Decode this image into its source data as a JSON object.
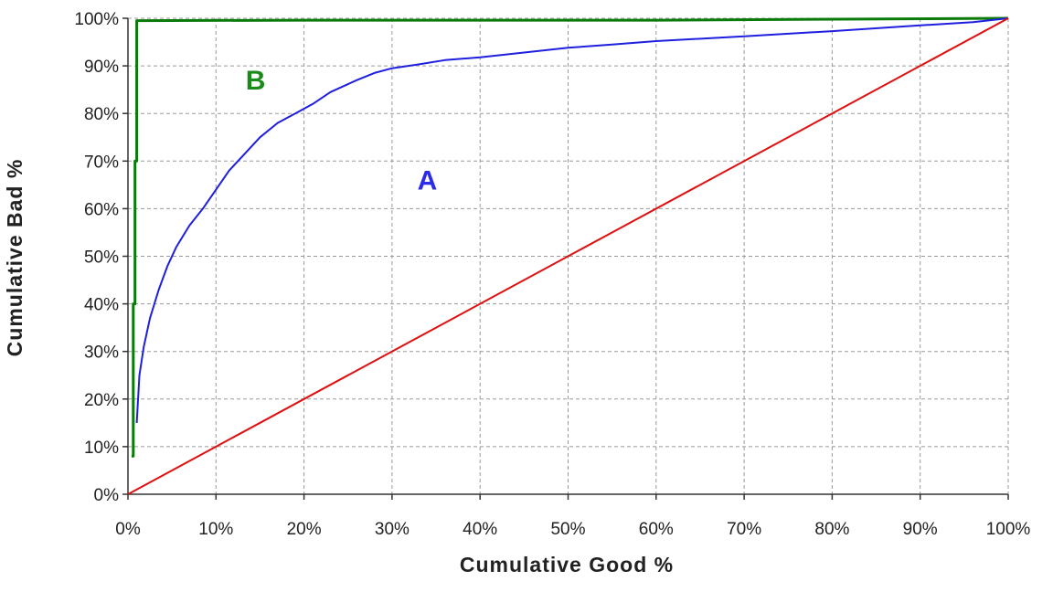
{
  "chart_data": {
    "type": "line",
    "title": "",
    "xlabel": "Cumulative Good %",
    "ylabel": "Cumulative Bad %",
    "xlim": [
      0,
      100
    ],
    "ylim": [
      0,
      100
    ],
    "grid": true,
    "x_ticks": [
      "0%",
      "10%",
      "20%",
      "30%",
      "40%",
      "50%",
      "60%",
      "70%",
      "80%",
      "90%",
      "100%"
    ],
    "y_ticks": [
      "0%",
      "10%",
      "20%",
      "30%",
      "40%",
      "50%",
      "60%",
      "70%",
      "80%",
      "90%",
      "100%"
    ],
    "series": [
      {
        "color": "#0a7a0a",
        "points": [
          [
            0.4,
            8
          ],
          [
            0.6,
            8
          ],
          [
            0.6,
            40
          ],
          [
            0.8,
            40
          ],
          [
            0.8,
            70
          ],
          [
            1,
            70
          ],
          [
            1,
            99.5
          ],
          [
            20,
            99.6
          ],
          [
            60,
            99.6
          ],
          [
            100,
            100
          ]
        ]
      },
      {
        "color": "#1f1fe0",
        "points": [
          [
            1,
            15
          ],
          [
            1.3,
            25
          ],
          [
            1.8,
            31
          ],
          [
            2.5,
            37
          ],
          [
            3.5,
            43
          ],
          [
            4.5,
            48
          ],
          [
            5.5,
            52
          ],
          [
            7,
            56.5
          ],
          [
            8.5,
            60
          ],
          [
            10,
            64
          ],
          [
            11.5,
            68
          ],
          [
            13,
            71
          ],
          [
            15,
            75
          ],
          [
            17,
            78
          ],
          [
            19,
            80
          ],
          [
            21,
            82
          ],
          [
            23,
            84.5
          ],
          [
            26,
            87
          ],
          [
            28,
            88.5
          ],
          [
            30,
            89.5
          ],
          [
            33,
            90.3
          ],
          [
            36,
            91.2
          ],
          [
            40,
            91.8
          ],
          [
            45,
            92.8
          ],
          [
            50,
            93.8
          ],
          [
            55,
            94.5
          ],
          [
            60,
            95.2
          ],
          [
            70,
            96.2
          ],
          [
            80,
            97.3
          ],
          [
            90,
            98.5
          ],
          [
            96,
            99.2
          ],
          [
            100,
            100
          ]
        ]
      },
      {
        "color": "#e01010",
        "points": [
          [
            0,
            0
          ],
          [
            100,
            100
          ]
        ]
      }
    ],
    "annotations": [
      {
        "text": "B",
        "x": 14.5,
        "y": 85,
        "color": "#1a8a1a"
      },
      {
        "text": "A",
        "x": 34,
        "y": 64,
        "color": "#2b2be8"
      }
    ]
  }
}
